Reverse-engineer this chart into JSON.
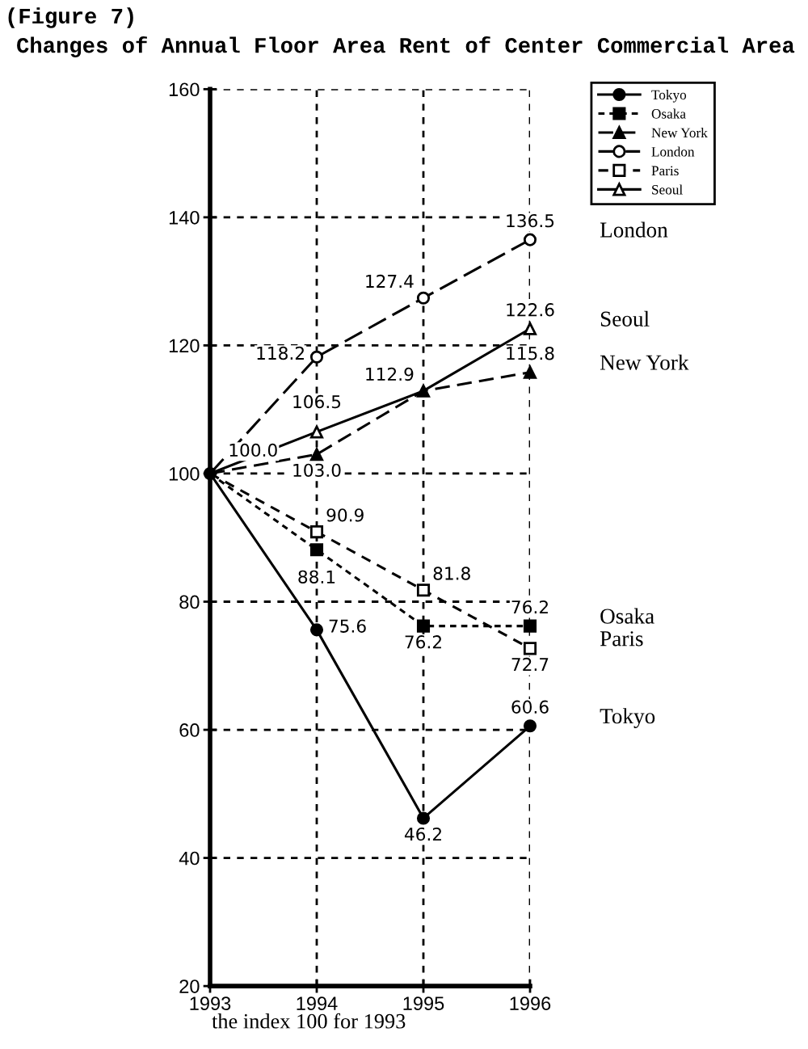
{
  "chart_data": {
    "type": "line",
    "title": "Changes of Annual Floor Area Rent of Center Commercial Area",
    "annotations": [
      "(Figure 7)",
      "the index 100 for 1993"
    ],
    "x": [
      1993,
      1994,
      1995,
      1996
    ],
    "xlim": [
      1993,
      1996
    ],
    "xticks": [
      1993,
      1994,
      1995,
      1996
    ],
    "ylim": [
      20,
      160
    ],
    "yticks": [
      20,
      40,
      60,
      80,
      100,
      120,
      140,
      160
    ],
    "grid": true,
    "legend": "top right",
    "series": [
      {
        "name": "Tokyo",
        "color": "#000000",
        "marker": "circle",
        "line_style": "solid",
        "values": [
          100.0,
          75.6,
          46.2,
          60.6
        ],
        "value_labels": [
          null,
          "75.6",
          "46.2",
          "60.6"
        ]
      },
      {
        "name": "Osaka",
        "color": "#000000",
        "marker": "square",
        "line_style": "dashed",
        "values": [
          100.0,
          88.1,
          76.2,
          76.2
        ],
        "value_labels": [
          null,
          "88.1",
          "76.2",
          "76.2"
        ]
      },
      {
        "name": "New York",
        "color": "#000000",
        "marker": "triangle",
        "line_style": "dashed",
        "values": [
          100.0,
          103.0,
          112.9,
          115.8
        ],
        "value_labels": [
          null,
          "103.0",
          null,
          "115.8"
        ]
      },
      {
        "name": "London",
        "color": "#000000",
        "marker": "circle",
        "line_style": "dashed",
        "values": [
          100.0,
          118.2,
          127.4,
          136.5
        ],
        "value_labels": [
          "100.0",
          "118.2",
          "127.4",
          "136.5"
        ]
      },
      {
        "name": "Paris",
        "color": "#000000",
        "marker": "square",
        "line_style": "dashed",
        "values": [
          100.0,
          90.9,
          81.8,
          72.7
        ],
        "value_labels": [
          null,
          "90.9",
          "81.8",
          "72.7"
        ]
      },
      {
        "name": "Seoul",
        "color": "#000000",
        "marker": "triangle",
        "line_style": "solid",
        "values": [
          100.0,
          106.5,
          112.9,
          122.6
        ],
        "value_labels": [
          null,
          "106.5",
          "112.9",
          "122.6"
        ]
      }
    ]
  }
}
